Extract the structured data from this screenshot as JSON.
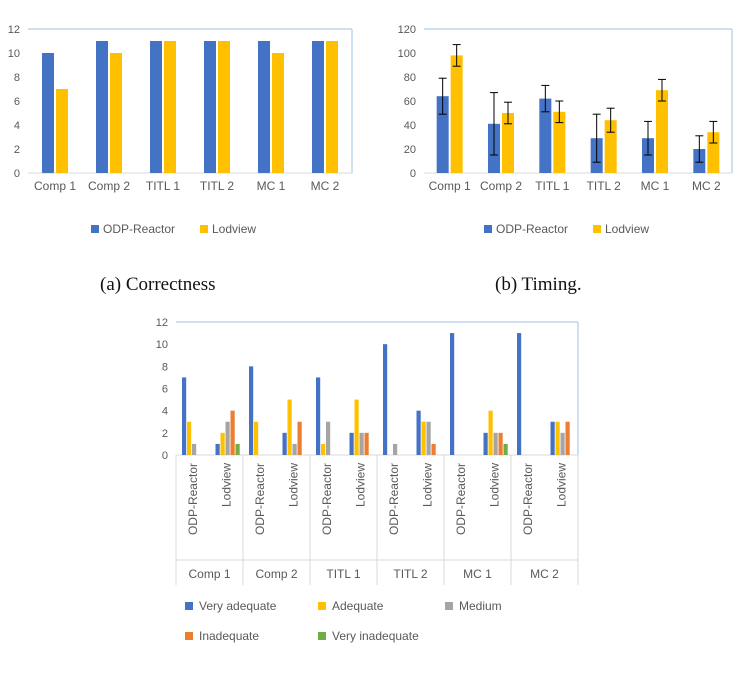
{
  "colors": {
    "ODP-Reactor": "#4472c4",
    "Lodview": "#ffc000",
    "Very adequate": "#4472c4",
    "Adequate": "#ffc000",
    "Medium": "#a5a5a5",
    "Inadequate": "#ed7d31",
    "Very inadequate": "#70ad47",
    "axis": "#d9d9d9",
    "frame": "#9dc3e6",
    "text": "#595959"
  },
  "captions": {
    "a": "(a) Correctness",
    "b": "(b) Timing."
  },
  "chart_data": [
    {
      "type": "bar",
      "categories": [
        "Comp 1",
        "Comp 2",
        "TITL 1",
        "TITL 2",
        "MC 1",
        "MC 2"
      ],
      "series": [
        {
          "name": "ODP-Reactor",
          "values": [
            10,
            11,
            11,
            11,
            11,
            11
          ]
        },
        {
          "name": "Lodview",
          "values": [
            7,
            10,
            11,
            11,
            10,
            11
          ]
        }
      ],
      "ylim": [
        0,
        12
      ],
      "yticks": [
        0,
        2,
        4,
        6,
        8,
        10,
        12
      ],
      "legend": "bottom",
      "grid": false
    },
    {
      "type": "bar",
      "categories": [
        "Comp 1",
        "Comp 2",
        "TITL 1",
        "TITL 2",
        "MC 1",
        "MC 2"
      ],
      "series": [
        {
          "name": "ODP-Reactor",
          "values": [
            64,
            41,
            62,
            29,
            29,
            20
          ],
          "error": [
            15,
            26,
            11,
            20,
            14,
            11
          ]
        },
        {
          "name": "Lodview",
          "values": [
            98,
            50,
            51,
            44,
            69,
            34
          ],
          "error": [
            9,
            9,
            9,
            10,
            9,
            9
          ]
        }
      ],
      "ylim": [
        0,
        120
      ],
      "yticks": [
        0,
        20,
        40,
        60,
        80,
        100,
        120
      ],
      "legend": "bottom",
      "grid": false
    },
    {
      "type": "bar",
      "groups": [
        "Comp 1",
        "Comp 2",
        "TITL 1",
        "TITL 2",
        "MC 1",
        "MC 2"
      ],
      "subcategories": [
        "ODP-Reactor",
        "Lodview"
      ],
      "series": [
        {
          "name": "Very adequate",
          "values": [
            [
              7,
              1
            ],
            [
              8,
              2
            ],
            [
              7,
              2
            ],
            [
              10,
              4
            ],
            [
              11,
              2
            ],
            [
              11,
              3
            ]
          ]
        },
        {
          "name": "Adequate",
          "values": [
            [
              3,
              2
            ],
            [
              3,
              5
            ],
            [
              1,
              5
            ],
            [
              0,
              3
            ],
            [
              0,
              4
            ],
            [
              0,
              3
            ]
          ]
        },
        {
          "name": "Medium",
          "values": [
            [
              1,
              3
            ],
            [
              0,
              1
            ],
            [
              3,
              2
            ],
            [
              1,
              3
            ],
            [
              0,
              2
            ],
            [
              0,
              2
            ]
          ]
        },
        {
          "name": "Inadequate",
          "values": [
            [
              0,
              4
            ],
            [
              0,
              3
            ],
            [
              0,
              2
            ],
            [
              0,
              1
            ],
            [
              0,
              2
            ],
            [
              0,
              3
            ]
          ]
        },
        {
          "name": "Very inadequate",
          "values": [
            [
              0,
              1
            ],
            [
              0,
              0
            ],
            [
              0,
              0
            ],
            [
              0,
              0
            ],
            [
              0,
              1
            ],
            [
              0,
              0
            ]
          ]
        }
      ],
      "ylim": [
        0,
        12
      ],
      "yticks": [
        0,
        2,
        4,
        6,
        8,
        10,
        12
      ],
      "legend": "bottom",
      "grid": false
    }
  ]
}
